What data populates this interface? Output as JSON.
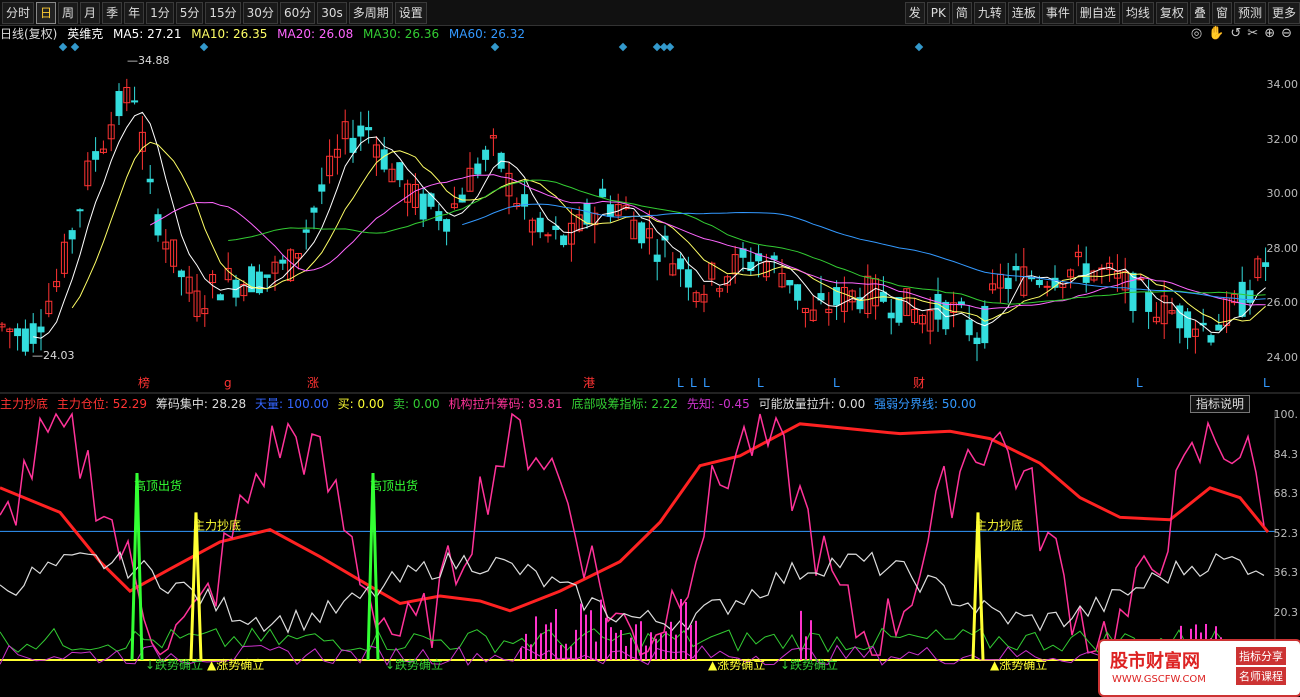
{
  "toolbar": {
    "left_buttons": [
      "分时",
      "日",
      "周",
      "月",
      "季",
      "年",
      "1分",
      "5分",
      "15分",
      "30分",
      "60分",
      "30s",
      "多周期",
      "设置"
    ],
    "active_index": 1,
    "right_buttons": [
      "发",
      "PK",
      "简",
      "九转",
      "连板",
      "事件",
      "删自选",
      "均线",
      "复权",
      "叠",
      "窗",
      "预测",
      "更多"
    ]
  },
  "kline_header": {
    "period": "日线(复权)",
    "stock_name": "英维克",
    "ma5": "MA5: 27.21",
    "ma10": "MA10: 26.35",
    "ma20": "MA20: 26.08",
    "ma30": "MA30: 26.36",
    "ma60": "MA60: 26.32",
    "colors": {
      "ma5": "#ffffff",
      "ma10": "#ffff66",
      "ma20": "#ff66ff",
      "ma30": "#33cc33",
      "ma60": "#3399ff"
    }
  },
  "price_axis": [
    "34.00",
    "32.00",
    "30.00",
    "28.00",
    "26.00",
    "24.00"
  ],
  "high_label": "34.88",
  "low_label": "24.03",
  "event_marks": [
    "榜",
    "g",
    "涨",
    "港",
    "L",
    "L",
    "L",
    "L",
    "L",
    "财",
    "L",
    "L"
  ],
  "indicator_header": {
    "i1": "主力抄底",
    "i2": "主力仓位: 52.29",
    "i3": "筹码集中: 28.28",
    "i4": "天量: 100.00",
    "i5": "买: 0.00",
    "i6": "卖: 0.00",
    "i7": "机构拉升筹码: 83.81",
    "i8": "底部吸筹指标: 2.22",
    "i9": "先知: -0.45",
    "i10": "可能放量拉升: 0.00",
    "i11": "强弱分界线: 50.00",
    "help": "指标说明"
  },
  "indicator_axis": [
    "100.",
    "84.3",
    "68.3",
    "52.3",
    "36.3",
    "20.3"
  ],
  "signal_labels": {
    "top_sell": "高顶出货",
    "bottom_buy": "主力抄底",
    "down_trend": "跌势确立",
    "up_trend": "涨势确立"
  },
  "watermark": {
    "name": "股市财富网",
    "tag1": "指标分享",
    "tag2": "名师课程",
    "url": "WWW.GSCFW.COM"
  }
}
